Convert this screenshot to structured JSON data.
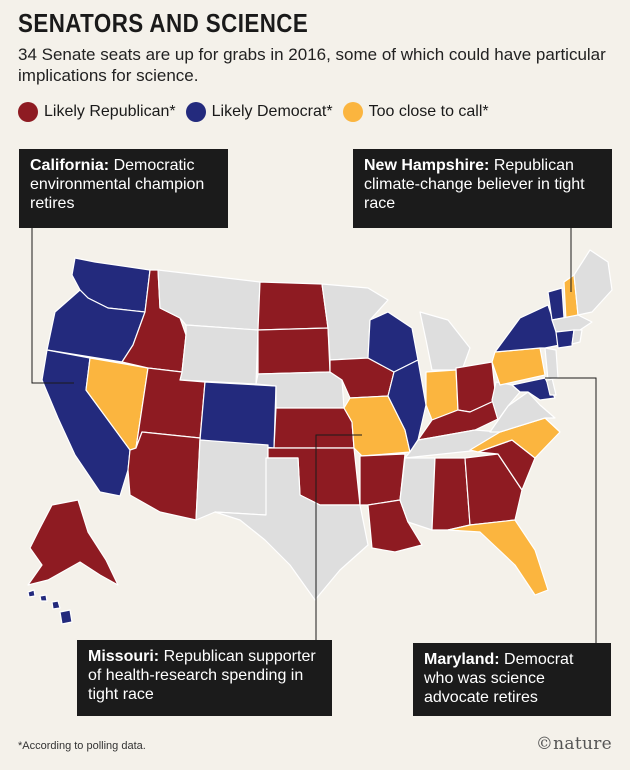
{
  "title": "SENATORS AND SCIENCE",
  "subtitle": "34 Senate seats are up for grabs in 2016, some of which could have particular implications for science.",
  "legend": [
    {
      "label": "Likely Republican*",
      "color": "#8e1b22"
    },
    {
      "label": "Likely Democrat*",
      "color": "#232a7d"
    },
    {
      "label": "Too close to call*",
      "color": "#fbb53f"
    }
  ],
  "colors": {
    "republican": "#8e1b22",
    "democrat": "#232a7d",
    "tossup": "#fbb53f",
    "no_race": "#dedede",
    "state_border": "#ffffff",
    "leader_line": "#1b1b1b"
  },
  "callouts": {
    "california": {
      "state": "California:",
      "text": "Democratic environmental champion retires"
    },
    "new_hampshire": {
      "state": "New Hampshire:",
      "text": "Republican climate-change believer in tight race"
    },
    "missouri": {
      "state": "Missouri:",
      "text": "Republican supporter of health-research spending in tight race"
    },
    "maryland": {
      "state": "Maryland:",
      "text": "Democrat who was science advocate retires"
    }
  },
  "states": {
    "WA": "democrat",
    "OR": "democrat",
    "CA": "democrat",
    "NV": "tossup",
    "ID": "republican",
    "UT": "republican",
    "AZ": "republican",
    "CO": "democrat",
    "ND": "republican",
    "SD": "republican",
    "KS": "republican",
    "OK": "republican",
    "IA": "republican",
    "MO": "tossup",
    "AR": "republican",
    "LA": "republican",
    "WI": "democrat",
    "IL": "democrat",
    "IN": "tossup",
    "OH": "republican",
    "KY": "republican",
    "AL": "republican",
    "GA": "republican",
    "SC": "republican",
    "NC": "tossup",
    "FL": "tossup",
    "PA": "tossup",
    "MD": "democrat",
    "NY": "democrat",
    "VT": "democrat",
    "CT": "democrat",
    "NH": "tossup",
    "AK": "republican",
    "HI": "democrat",
    "MT": "no_race",
    "WY": "no_race",
    "NE": "no_race",
    "NM": "no_race",
    "TX": "no_race",
    "MN": "no_race",
    "MI": "no_race",
    "MS": "no_race",
    "TN": "no_race",
    "WV": "no_race",
    "VA": "no_race",
    "ME": "no_race",
    "MA": "no_race",
    "NJ": "no_race",
    "DE": "no_race",
    "RI": "no_race"
  },
  "footnote": "*According to polling data.",
  "brand": "©nature"
}
